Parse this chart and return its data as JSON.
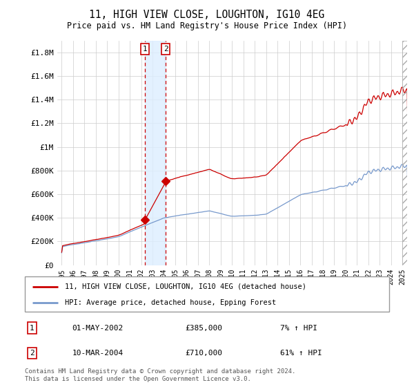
{
  "title": "11, HIGH VIEW CLOSE, LOUGHTON, IG10 4EG",
  "subtitle": "Price paid vs. HM Land Registry's House Price Index (HPI)",
  "hpi_color": "#7799cc",
  "price_color": "#cc0000",
  "shading_color": "#ddeeff",
  "ylim": [
    0,
    1900000
  ],
  "yticks": [
    0,
    200000,
    400000,
    600000,
    800000,
    1000000,
    1200000,
    1400000,
    1600000,
    1800000
  ],
  "ytick_labels": [
    "£0",
    "£200K",
    "£400K",
    "£600K",
    "£800K",
    "£1M",
    "£1.2M",
    "£1.4M",
    "£1.6M",
    "£1.8M"
  ],
  "legend_label_price": "11, HIGH VIEW CLOSE, LOUGHTON, IG10 4EG (detached house)",
  "legend_label_hpi": "HPI: Average price, detached house, Epping Forest",
  "transaction1_date": "01-MAY-2002",
  "transaction1_price": "£385,000",
  "transaction1_hpi": "7% ↑ HPI",
  "transaction2_date": "10-MAR-2004",
  "transaction2_price": "£710,000",
  "transaction2_hpi": "61% ↑ HPI",
  "footnote": "Contains HM Land Registry data © Crown copyright and database right 2024.\nThis data is licensed under the Open Government Licence v3.0.",
  "marker1_x": 2002.33,
  "marker1_y": 385000,
  "marker2_x": 2004.17,
  "marker2_y": 710000,
  "shade_x1": 2002.33,
  "shade_x2": 2004.17,
  "xlim_left": 1994.6,
  "xlim_right": 2025.4
}
